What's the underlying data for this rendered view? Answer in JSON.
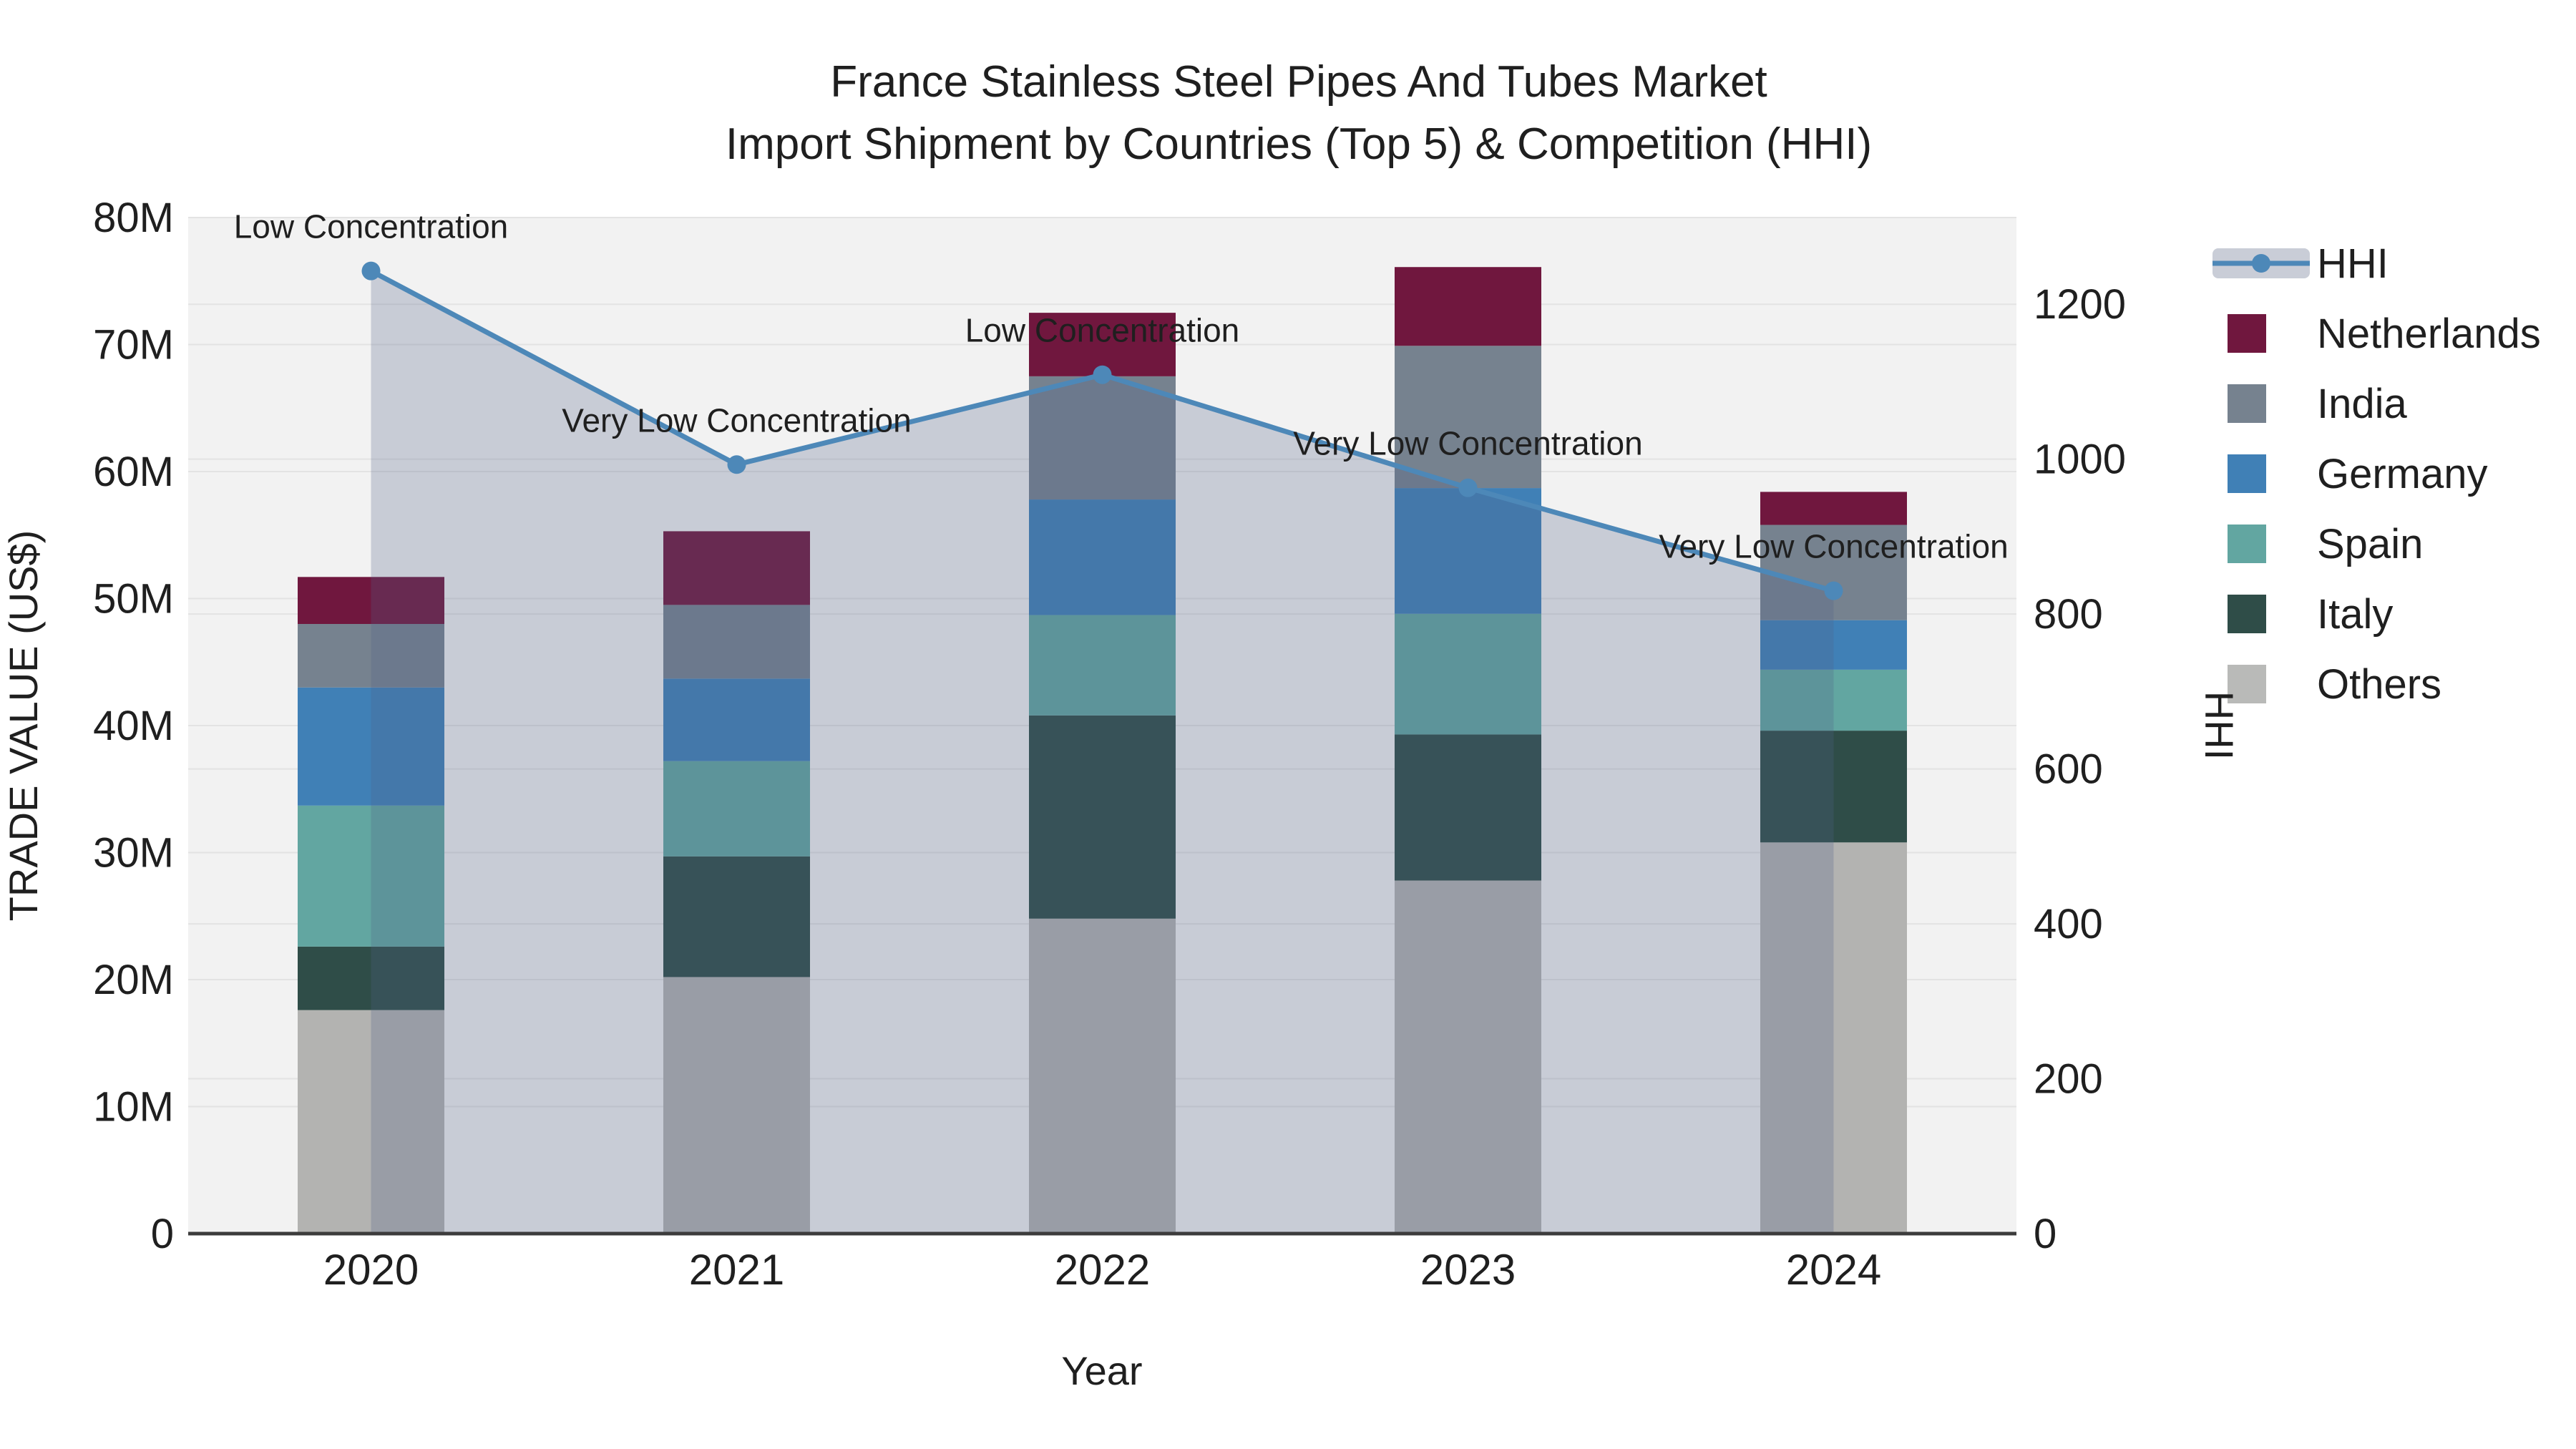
{
  "title": {
    "line1": "France Stainless Steel Pipes And Tubes Market",
    "line2": "Import Shipment by Countries (Top 5) & Competition (HHI)"
  },
  "chart_data": {
    "type": "stacked-bar+line",
    "categories": [
      "2020",
      "2021",
      "2022",
      "2023",
      "2024"
    ],
    "value_unit": "M US$",
    "series": [
      {
        "name": "Others",
        "color": "#b3b3b1",
        "values": [
          17.6,
          20.2,
          24.8,
          27.8,
          30.8
        ]
      },
      {
        "name": "Italy",
        "color": "#2f4d48",
        "values": [
          5.0,
          9.5,
          16.0,
          11.5,
          8.8
        ]
      },
      {
        "name": "Spain",
        "color": "#62a6a1",
        "values": [
          11.1,
          7.5,
          7.9,
          9.5,
          4.8
        ]
      },
      {
        "name": "Germany",
        "color": "#4080b6",
        "values": [
          9.3,
          6.5,
          9.1,
          9.9,
          3.9
        ]
      },
      {
        "name": "India",
        "color": "#76828f",
        "values": [
          5.0,
          5.8,
          9.7,
          11.2,
          7.5
        ]
      },
      {
        "name": "Netherlands",
        "color": "#70173e",
        "values": [
          3.7,
          5.8,
          5.0,
          6.2,
          2.6
        ]
      }
    ],
    "line_series": {
      "name": "HHI",
      "color": "#4d88b8",
      "area_fill": "rgba(82,97,135,0.26)",
      "values": [
        1243,
        993,
        1109,
        963,
        830
      ]
    },
    "annotations": [
      {
        "category": "2020",
        "text": "Low Concentration"
      },
      {
        "category": "2021",
        "text": "Very Low Concentration"
      },
      {
        "category": "2022",
        "text": "Low Concentration"
      },
      {
        "category": "2023",
        "text": "Very Low Concentration"
      },
      {
        "category": "2024",
        "text": "Very Low Concentration"
      }
    ],
    "y_left": {
      "label": "TRADE VALUE (US$)",
      "ticks": [
        "0",
        "10M",
        "20M",
        "30M",
        "40M",
        "50M",
        "60M",
        "70M",
        "80M"
      ],
      "tick_values": [
        0,
        10,
        20,
        30,
        40,
        50,
        60,
        70,
        80
      ],
      "max": 80
    },
    "y_right": {
      "label": "HHI",
      "ticks": [
        "0",
        "200",
        "400",
        "600",
        "800",
        "1000",
        "1200"
      ],
      "tick_values": [
        0,
        200,
        400,
        600,
        800,
        1000,
        1200
      ],
      "axis_max": 1312
    },
    "x_axis": {
      "label": "Year"
    },
    "legend": [
      {
        "label": "HHI",
        "type": "line",
        "color": "#4d88b8",
        "band_color": "#c9cdd7"
      },
      {
        "label": "Netherlands",
        "type": "swatch",
        "color": "#70173e"
      },
      {
        "label": "India",
        "type": "swatch",
        "color": "#76828f"
      },
      {
        "label": "Germany",
        "type": "swatch",
        "color": "#4080b6"
      },
      {
        "label": "Spain",
        "type": "swatch",
        "color": "#62a6a1"
      },
      {
        "label": "Italy",
        "type": "swatch",
        "color": "#2f4d48"
      },
      {
        "label": "Others",
        "type": "swatch",
        "color": "#b9bab8"
      }
    ],
    "style": {
      "plot_bg": "#f2f2f2",
      "gridline": "#e3e3e3",
      "axis_line": "#3c3c3c"
    }
  }
}
